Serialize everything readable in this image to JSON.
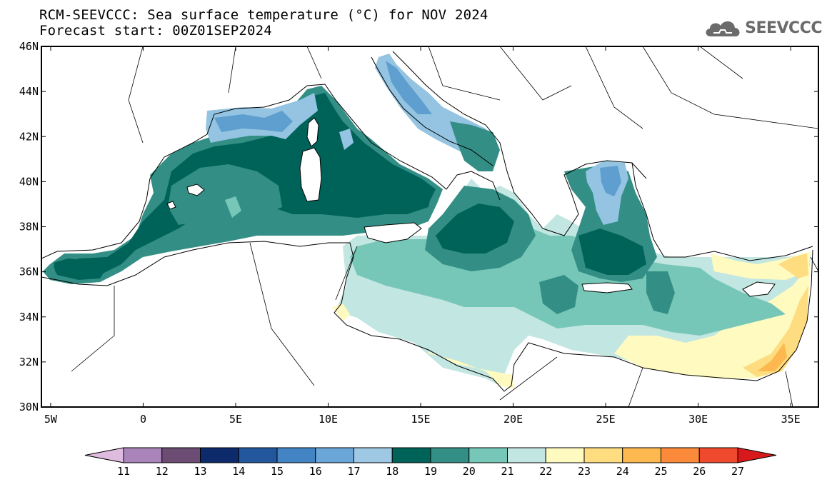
{
  "header": {
    "title_line1": "RCM-SEEVCCC: Sea surface temperature (°C) for NOV 2024",
    "title_line2": "Forecast start: 00Z01SEP2024",
    "logo_text": "SEEVCCC",
    "logo_icon": "cloud-icon"
  },
  "map": {
    "lon_range": [
      -5.5,
      36.5
    ],
    "lat_range": [
      30,
      46
    ],
    "lat_ticks": [
      {
        "value": 46,
        "label": "46N"
      },
      {
        "value": 44,
        "label": "44N"
      },
      {
        "value": 42,
        "label": "42N"
      },
      {
        "value": 40,
        "label": "40N"
      },
      {
        "value": 38,
        "label": "38N"
      },
      {
        "value": 36,
        "label": "36N"
      },
      {
        "value": 34,
        "label": "34N"
      },
      {
        "value": 32,
        "label": "32N"
      },
      {
        "value": 30,
        "label": "30N"
      }
    ],
    "lon_ticks": [
      {
        "value": -5,
        "label": "5W"
      },
      {
        "value": 0,
        "label": "0"
      },
      {
        "value": 5,
        "label": "5E"
      },
      {
        "value": 10,
        "label": "10E"
      },
      {
        "value": 15,
        "label": "15E"
      },
      {
        "value": 20,
        "label": "20E"
      },
      {
        "value": 25,
        "label": "25E"
      },
      {
        "value": 30,
        "label": "30E"
      },
      {
        "value": 35,
        "label": "35E"
      }
    ],
    "colors": {
      "16": "#5e9fd0",
      "17": "#94c4e2",
      "18": "#006359",
      "19": "#338f85",
      "20": "#77c7b9",
      "21": "#c2e6e1",
      "22": "#fffac0",
      "23": "#fedd80",
      "24": "#fdb94f",
      "land": "#ffffff",
      "border": "#000000"
    }
  },
  "colorbar": {
    "labels": [
      "11",
      "12",
      "13",
      "14",
      "15",
      "16",
      "17",
      "18",
      "19",
      "20",
      "21",
      "22",
      "23",
      "24",
      "25",
      "26",
      "27"
    ],
    "colors": [
      "#e0bbe0",
      "#a884bb",
      "#6d4c73",
      "#0d2b6b",
      "#22579e",
      "#4384c4",
      "#6aa7d8",
      "#9fc8e5",
      "#006359",
      "#338f85",
      "#77c7b9",
      "#c2e6e1",
      "#fffac0",
      "#fedd80",
      "#fdb94f",
      "#fb8b3b",
      "#f04a2e",
      "#d7191c"
    ]
  }
}
